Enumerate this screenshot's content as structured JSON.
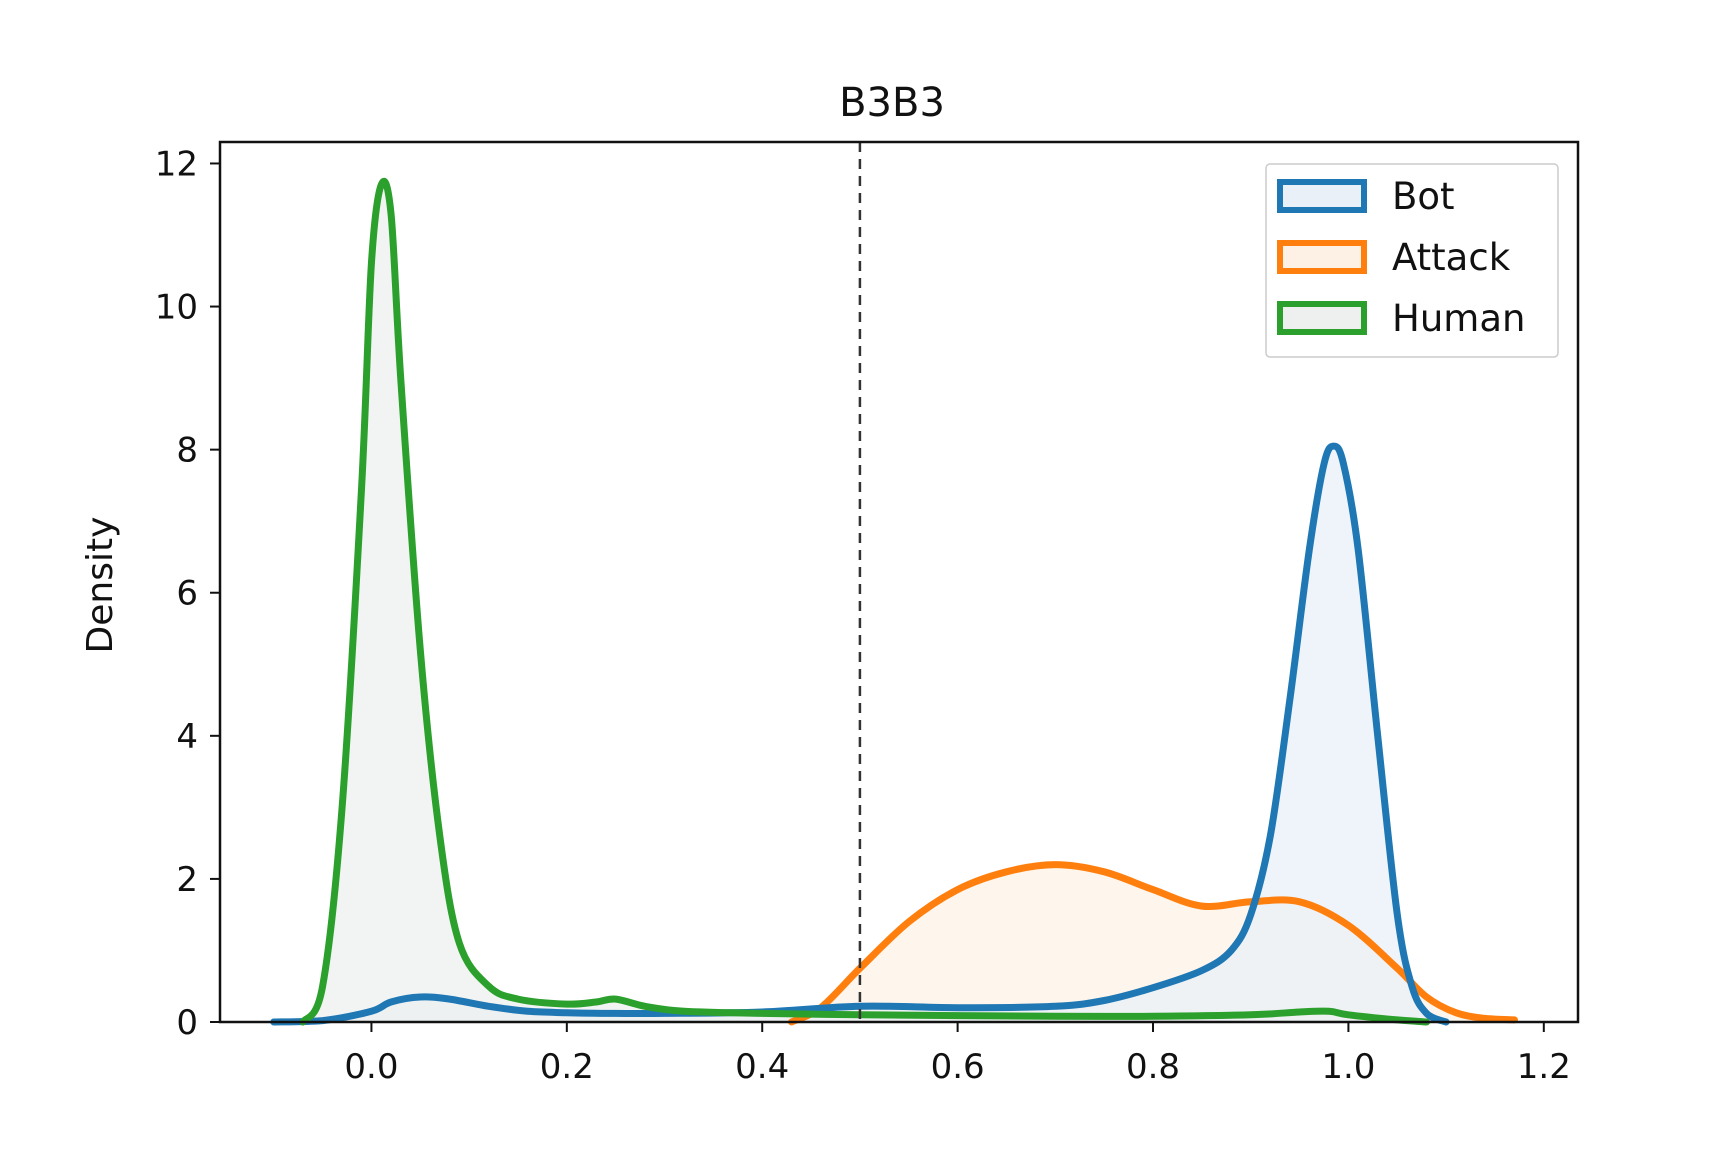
{
  "chart_data": {
    "type": "area",
    "title": "B3B3",
    "xlabel": "",
    "ylabel": "Density",
    "xlim": [
      -0.155,
      1.235
    ],
    "ylim": [
      0,
      12.3
    ],
    "xticks": [
      0.0,
      0.2,
      0.4,
      0.6,
      0.8,
      1.0,
      1.2
    ],
    "xtick_labels": [
      "0.0",
      "0.2",
      "0.4",
      "0.6",
      "0.8",
      "1.0",
      "1.2"
    ],
    "yticks": [
      0,
      2,
      4,
      6,
      8,
      10,
      12
    ],
    "ytick_labels": [
      "0",
      "2",
      "4",
      "6",
      "8",
      "10",
      "12"
    ],
    "threshold_x": 0.5,
    "grid": false,
    "legend_position": "top-right",
    "series": [
      {
        "name": "Bot",
        "color": "#1f77b4",
        "fill": "#eaf0f8",
        "points": [
          [
            -0.1,
            0.0
          ],
          [
            -0.05,
            0.02
          ],
          [
            0.0,
            0.15
          ],
          [
            0.02,
            0.28
          ],
          [
            0.05,
            0.35
          ],
          [
            0.08,
            0.32
          ],
          [
            0.12,
            0.22
          ],
          [
            0.16,
            0.15
          ],
          [
            0.2,
            0.13
          ],
          [
            0.25,
            0.12
          ],
          [
            0.3,
            0.12
          ],
          [
            0.4,
            0.14
          ],
          [
            0.5,
            0.22
          ],
          [
            0.6,
            0.2
          ],
          [
            0.7,
            0.22
          ],
          [
            0.75,
            0.3
          ],
          [
            0.8,
            0.48
          ],
          [
            0.85,
            0.72
          ],
          [
            0.88,
            1.0
          ],
          [
            0.9,
            1.5
          ],
          [
            0.92,
            2.6
          ],
          [
            0.94,
            4.5
          ],
          [
            0.96,
            6.6
          ],
          [
            0.975,
            7.8
          ],
          [
            0.985,
            8.05
          ],
          [
            0.995,
            7.8
          ],
          [
            1.01,
            6.6
          ],
          [
            1.03,
            4.0
          ],
          [
            1.05,
            1.5
          ],
          [
            1.065,
            0.5
          ],
          [
            1.08,
            0.12
          ],
          [
            1.1,
            0.0
          ]
        ]
      },
      {
        "name": "Attack",
        "color": "#ff7f0e",
        "fill": "#fdf1e6",
        "points": [
          [
            0.43,
            0.0
          ],
          [
            0.46,
            0.2
          ],
          [
            0.5,
            0.75
          ],
          [
            0.55,
            1.4
          ],
          [
            0.6,
            1.85
          ],
          [
            0.65,
            2.1
          ],
          [
            0.7,
            2.2
          ],
          [
            0.75,
            2.1
          ],
          [
            0.8,
            1.85
          ],
          [
            0.85,
            1.62
          ],
          [
            0.9,
            1.68
          ],
          [
            0.95,
            1.68
          ],
          [
            1.0,
            1.35
          ],
          [
            1.05,
            0.75
          ],
          [
            1.08,
            0.35
          ],
          [
            1.11,
            0.13
          ],
          [
            1.14,
            0.05
          ],
          [
            1.17,
            0.03
          ]
        ]
      },
      {
        "name": "Human",
        "color": "#2ca02c",
        "fill": "#eef0ef",
        "points": [
          [
            -0.07,
            0.0
          ],
          [
            -0.05,
            0.5
          ],
          [
            -0.03,
            3.0
          ],
          [
            -0.01,
            7.5
          ],
          [
            0.0,
            10.6
          ],
          [
            0.01,
            11.7
          ],
          [
            0.02,
            11.3
          ],
          [
            0.03,
            9.0
          ],
          [
            0.05,
            5.2
          ],
          [
            0.07,
            2.6
          ],
          [
            0.09,
            1.1
          ],
          [
            0.12,
            0.5
          ],
          [
            0.15,
            0.32
          ],
          [
            0.2,
            0.25
          ],
          [
            0.23,
            0.28
          ],
          [
            0.25,
            0.32
          ],
          [
            0.28,
            0.22
          ],
          [
            0.32,
            0.15
          ],
          [
            0.4,
            0.12
          ],
          [
            0.5,
            0.1
          ],
          [
            0.6,
            0.09
          ],
          [
            0.7,
            0.08
          ],
          [
            0.8,
            0.08
          ],
          [
            0.9,
            0.1
          ],
          [
            0.95,
            0.14
          ],
          [
            0.98,
            0.15
          ],
          [
            1.0,
            0.1
          ],
          [
            1.05,
            0.03
          ],
          [
            1.08,
            0.0
          ]
        ]
      }
    ]
  }
}
